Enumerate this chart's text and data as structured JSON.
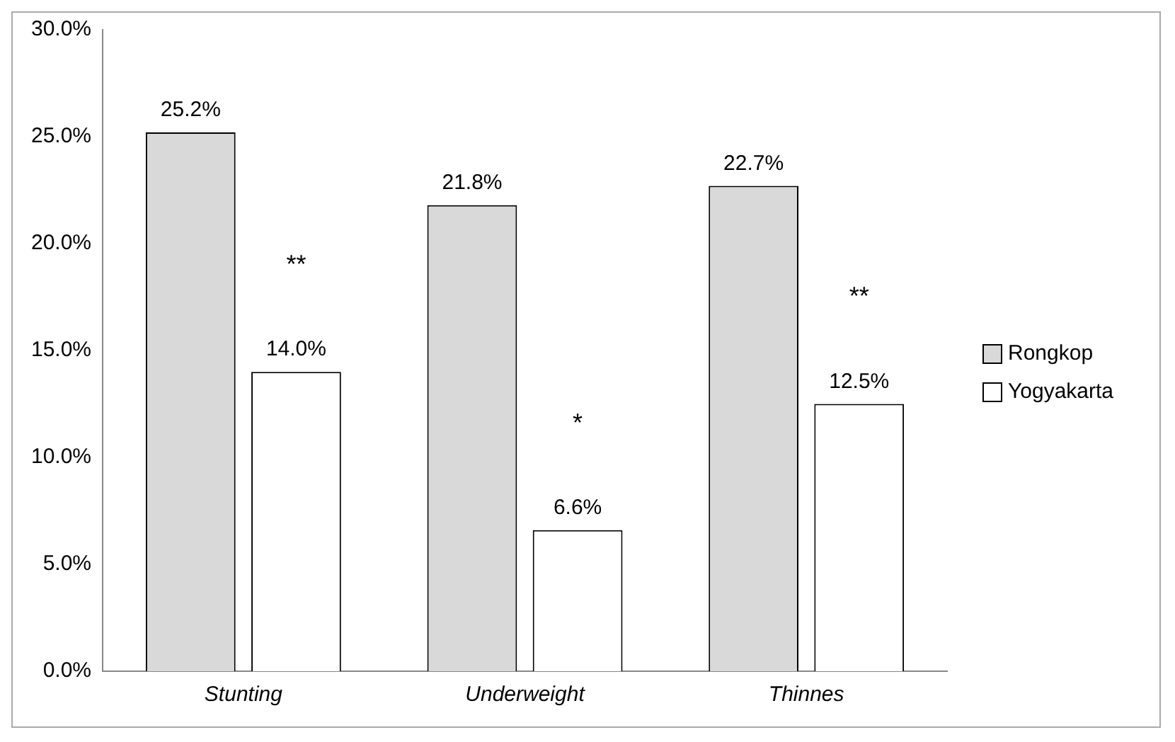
{
  "chart_data": {
    "type": "bar",
    "categories": [
      "Stunting",
      "Underweight",
      "Thinnes"
    ],
    "series": [
      {
        "name": "Rongkop",
        "color": "#d9d9d9",
        "values": [
          25.2,
          21.8,
          22.7
        ],
        "value_labels": [
          "25.2%",
          "21.8%",
          "22.7%"
        ]
      },
      {
        "name": "Yogyakarta",
        "color": "#ffffff",
        "values": [
          14.0,
          6.6,
          12.5
        ],
        "value_labels": [
          "14.0%",
          "6.6%",
          "12.5%"
        ]
      }
    ],
    "ylim": [
      0,
      30
    ],
    "yticks": [
      {
        "value": 0,
        "label": "0.0%"
      },
      {
        "value": 5,
        "label": "5.0%"
      },
      {
        "value": 10,
        "label": "10.0%"
      },
      {
        "value": 15,
        "label": "15.0%"
      },
      {
        "value": 20,
        "label": "20.0%"
      },
      {
        "value": 25,
        "label": "25.0%"
      },
      {
        "value": 30,
        "label": "30.0%"
      }
    ],
    "annotations": [
      "**",
      "*",
      "**"
    ],
    "legend": "right",
    "grid": false
  }
}
